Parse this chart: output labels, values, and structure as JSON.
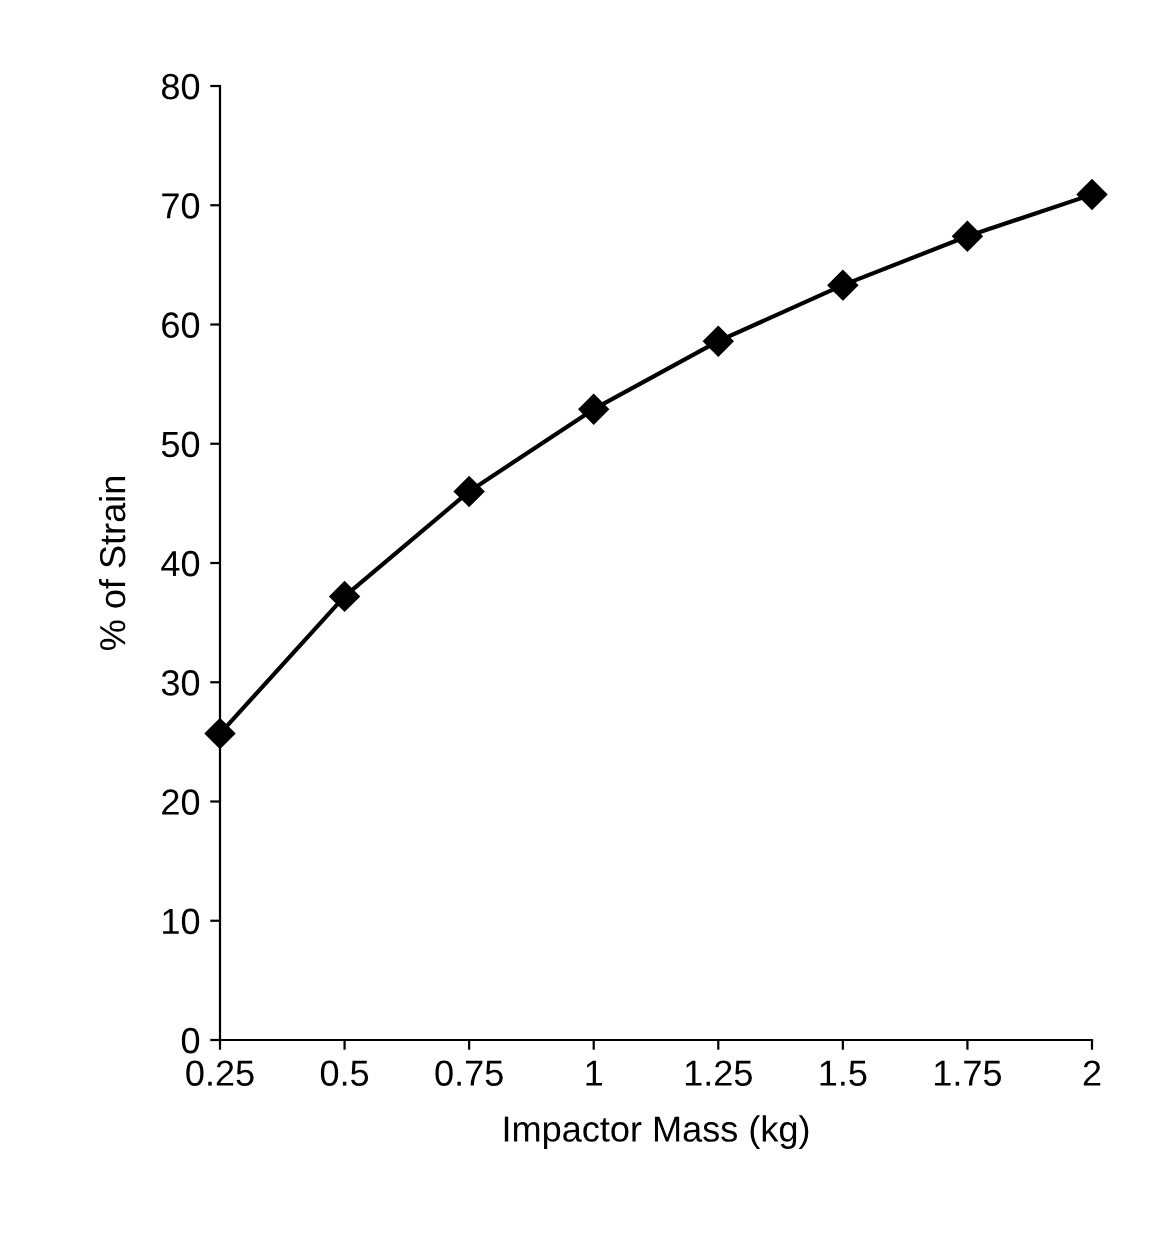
{
  "chart_data": {
    "type": "line",
    "xlabel": "Impactor Mass (kg)",
    "ylabel": "% of Strain",
    "x": [
      0.25,
      0.5,
      0.75,
      1,
      1.25,
      1.5,
      1.75,
      2
    ],
    "series": [
      {
        "color": "#000000",
        "values": [
          25.7,
          37.2,
          46.0,
          52.9,
          58.6,
          63.3,
          67.4,
          70.9
        ]
      }
    ],
    "xlim": [
      0.25,
      2
    ],
    "xticks": [
      0.25,
      0.5,
      0.75,
      1,
      1.25,
      1.5,
      1.75,
      2
    ],
    "ylim": [
      0,
      80
    ],
    "yticks": [
      0,
      10,
      20,
      30,
      40,
      50,
      60,
      70,
      80
    ],
    "grid": false,
    "marker": "diamond",
    "line_style": "solid"
  }
}
